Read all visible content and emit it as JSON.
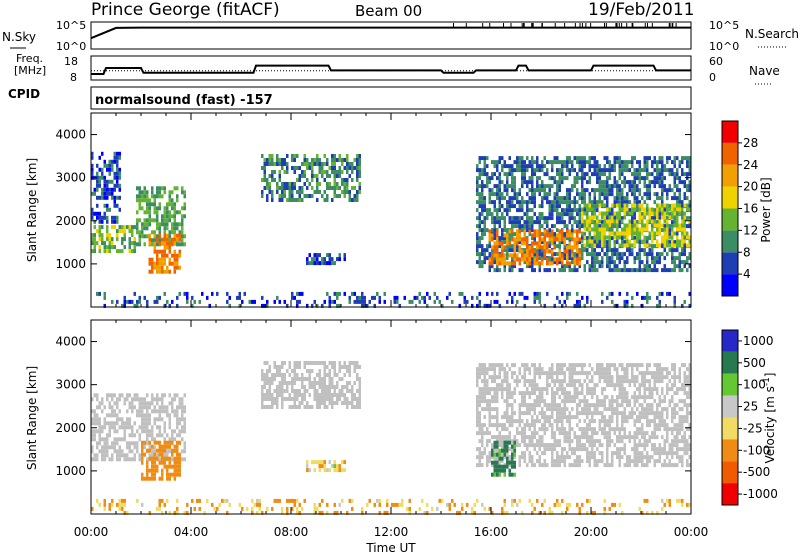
{
  "header": {
    "station": "Prince George (fitACF)",
    "beam": "Beam 00",
    "date": "19/Feb/2011"
  },
  "side_labels": {
    "nsky": "N.Sky",
    "freq_line1": "Freq.",
    "freq_line2": "[MHz]",
    "cpid": "CPID",
    "nsearch": "N.Search",
    "nave": "Nave"
  },
  "mode_text": "normalsound (fast) -157",
  "colors": {
    "power_scale": [
      "#0000ff",
      "#1e3fb4",
      "#3c8c64",
      "#64b432",
      "#f0d200",
      "#f0a000",
      "#f06400",
      "#f00000"
    ],
    "velocity_scale": [
      "#2828c8",
      "#287850",
      "#64c832",
      "#c8c8c8",
      "#f0dc64",
      "#f08c14",
      "#f05a00",
      "#f00000"
    ],
    "ground_scatter": "#c0c0c0"
  },
  "chart_data": [
    {
      "type": "line",
      "title": "N.Sky / N.Search",
      "ylabel": "N.Sky",
      "ylabel_right": "N.Search",
      "y_scale": "log",
      "ytick_labels_left": [
        "10^5",
        "10^0"
      ],
      "ytick_labels_right": [
        "10^5",
        "10^0"
      ],
      "x": [
        0,
        1,
        2,
        4,
        6,
        8,
        10,
        12,
        14,
        16,
        18,
        20,
        22,
        23,
        24
      ],
      "series": [
        {
          "name": "N.Sky",
          "values": [
            100,
            8000,
            9000,
            9000,
            9000,
            9000,
            9000,
            9000,
            9000,
            9000,
            9000,
            9000,
            9000,
            9000,
            9000
          ]
        },
        {
          "name": "N.Search",
          "values": [
            100000,
            100000,
            100000,
            100000,
            100000,
            100000,
            100000,
            100000,
            100000,
            100000,
            100000,
            100000,
            100000,
            100000,
            100000
          ]
        }
      ]
    },
    {
      "type": "line",
      "title": "Freq / Nave",
      "ylabel": "Freq. [MHz]",
      "ylabel_right": "Nave",
      "ylim": [
        8,
        18
      ],
      "ylim_right": [
        0,
        60
      ],
      "ytick_labels_left": [
        "18",
        "8"
      ],
      "ytick_labels_right": [
        "60",
        "0"
      ],
      "x": [
        0,
        0.5,
        0.6,
        2.0,
        2.1,
        4.2,
        4.3,
        6.5,
        6.6,
        9.5,
        9.6,
        12.0,
        12.1,
        14.0,
        14.1,
        15.3,
        15.4,
        17.0,
        17.1,
        17.4,
        17.5,
        20.0,
        20.1,
        22.5,
        22.6,
        23.4,
        23.5,
        24.0
      ],
      "series": [
        {
          "name": "Freq",
          "values": [
            10.5,
            10.5,
            13,
            13,
            11,
            11,
            11,
            11,
            14,
            14,
            12,
            12,
            12,
            12,
            11,
            11,
            12,
            12,
            14,
            14,
            12,
            12,
            14,
            14,
            12,
            12,
            12,
            12
          ]
        },
        {
          "name": "Nave",
          "values": [
            23,
            23,
            23,
            23,
            23,
            23,
            23,
            23,
            23,
            23,
            23,
            23,
            23,
            23,
            23,
            23,
            23,
            23,
            23,
            23,
            23,
            23,
            23,
            23,
            23,
            23,
            23,
            23
          ]
        }
      ]
    },
    {
      "type": "heatmap",
      "title": "Power",
      "xlabel": "",
      "ylabel": "Slant Range [km]",
      "xlim": [
        0,
        24
      ],
      "ylim": [
        0,
        4500
      ],
      "x_ticks": [
        0,
        4,
        8,
        12,
        16,
        20,
        24
      ],
      "y_ticks": [
        1000,
        2000,
        3000,
        4000
      ],
      "colorbar_label": "Power [dB]",
      "colorbar_ticks": [
        4,
        8,
        12,
        16,
        20,
        24,
        28
      ],
      "colorbar_range": [
        0,
        32
      ],
      "regions": [
        {
          "x": [
            0.0,
            1.8
          ],
          "y": [
            1300,
            1900
          ],
          "value": 14
        },
        {
          "x": [
            0.0,
            1.2
          ],
          "y": [
            2000,
            3600
          ],
          "value": 6
        },
        {
          "x": [
            1.8,
            3.8
          ],
          "y": [
            1500,
            2800
          ],
          "value": 12
        },
        {
          "x": [
            2.3,
            3.6
          ],
          "y": [
            850,
            1700
          ],
          "value": 24
        },
        {
          "x": [
            6.8,
            10.8
          ],
          "y": [
            2500,
            3550
          ],
          "value": 10
        },
        {
          "x": [
            8.6,
            10.2
          ],
          "y": [
            1050,
            1250
          ],
          "value": 6
        },
        {
          "x": [
            15.4,
            24.0
          ],
          "y": [
            900,
            3500
          ],
          "value": 8
        },
        {
          "x": [
            15.9,
            19.6
          ],
          "y": [
            1050,
            1800
          ],
          "value": 24
        },
        {
          "x": [
            19.6,
            24.0
          ],
          "y": [
            1400,
            2400
          ],
          "value": 16
        },
        {
          "x": [
            0.0,
            24.0
          ],
          "y": [
            0,
            350
          ],
          "value": 6
        }
      ]
    },
    {
      "type": "heatmap",
      "title": "Velocity",
      "xlabel": "Time UT",
      "ylabel": "Slant Range [km]",
      "xlim": [
        0,
        24
      ],
      "ylim": [
        0,
        4500
      ],
      "x_ticks": [
        0,
        4,
        8,
        12,
        16,
        20,
        24
      ],
      "x_tick_labels": [
        "00:00",
        "04:00",
        "08:00",
        "12:00",
        "16:00",
        "20:00",
        "00:00"
      ],
      "y_ticks": [
        1000,
        2000,
        3000,
        4000
      ],
      "colorbar_label": "Velocity [m s^-1]",
      "colorbar_ticks": [
        1000,
        500,
        100,
        25,
        -25,
        -100,
        -500,
        -1000
      ],
      "regions": [
        {
          "x": [
            0.0,
            3.8
          ],
          "y": [
            1300,
            2800
          ],
          "value": 0,
          "ground_scatter": true
        },
        {
          "x": [
            2.0,
            3.6
          ],
          "y": [
            850,
            1700
          ],
          "value": -250
        },
        {
          "x": [
            6.8,
            10.8
          ],
          "y": [
            2500,
            3550
          ],
          "value": 0,
          "ground_scatter": true
        },
        {
          "x": [
            8.6,
            10.2
          ],
          "y": [
            1000,
            1250
          ],
          "value": -50
        },
        {
          "x": [
            15.4,
            24.0
          ],
          "y": [
            1100,
            3500
          ],
          "value": 0,
          "ground_scatter": true
        },
        {
          "x": [
            16.0,
            17.0
          ],
          "y": [
            950,
            1700
          ],
          "value": 150
        },
        {
          "x": [
            0.0,
            24.0
          ],
          "y": [
            0,
            350
          ],
          "value": -100
        }
      ]
    }
  ]
}
